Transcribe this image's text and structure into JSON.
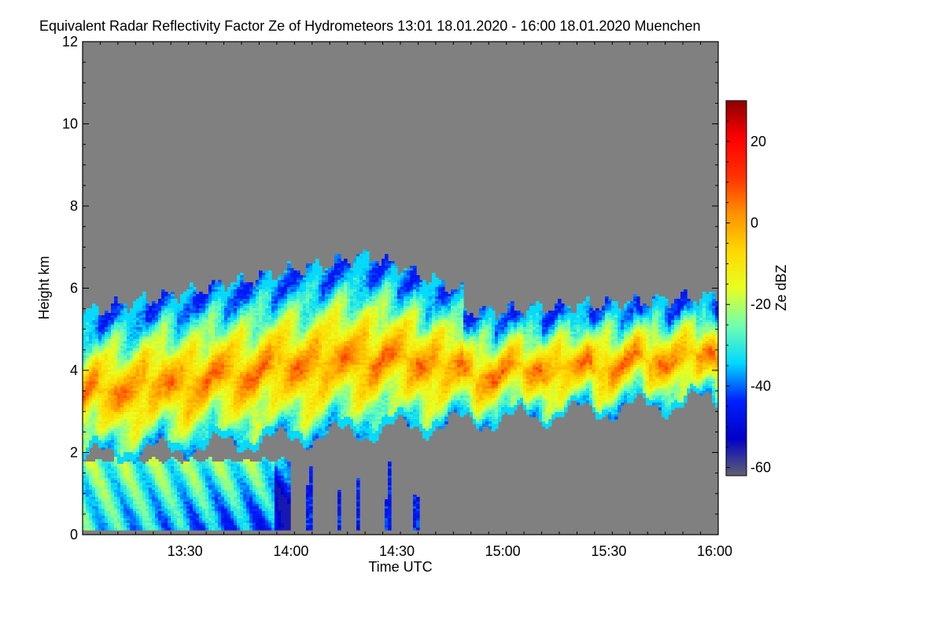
{
  "chart_data": {
    "type": "heatmap",
    "title": "Equivalent Radar Reflectivity Factor Ze of Hydrometeors   13:01 18.01.2020 - 16:00 18.01.2020 Muenchen",
    "xlabel": "Time UTC",
    "ylabel": "Height km",
    "colorbar_label": "Ze dBZ",
    "x_range": [
      "13:01",
      "16:01"
    ],
    "x_ticks": [
      "13:30",
      "14:00",
      "14:30",
      "15:00",
      "15:30",
      "16:00"
    ],
    "y_range": [
      0,
      12
    ],
    "y_ticks": [
      "0",
      "2",
      "4",
      "6",
      "8",
      "10",
      "12"
    ],
    "colorbar_range": [
      -62,
      30
    ],
    "colorbar_ticks": [
      "-60",
      "-40",
      "-20",
      "0",
      "20"
    ],
    "background_color": "#808080",
    "colormap": [
      "#606070",
      "#0000c8",
      "#0020ff",
      "#00d8ff",
      "#70ffb0",
      "#e8ff20",
      "#ffd800",
      "#ff9000",
      "#ff3000",
      "#ff0000",
      "#8b0000"
    ],
    "features": [
      {
        "kind": "upper_cloud_layer",
        "time_start": "13:01",
        "time_end": "16:01",
        "base_km_start": 1.9,
        "base_km_end": 3.3,
        "top_km_start": 5.4,
        "top_km_peak": 6.8,
        "top_km_end": 5.8,
        "core_dbz": 5
      },
      {
        "kind": "lower_precipitation",
        "time_start": "13:01",
        "time_end": "14:00",
        "base_km": 0.1,
        "top_km": 1.9,
        "core_dbz": -25
      },
      {
        "kind": "virga_streaks",
        "time_start": "14:03",
        "time_end": "14:41",
        "base_km": 0.1,
        "top_km": 1.9,
        "core_dbz": -45
      }
    ]
  }
}
